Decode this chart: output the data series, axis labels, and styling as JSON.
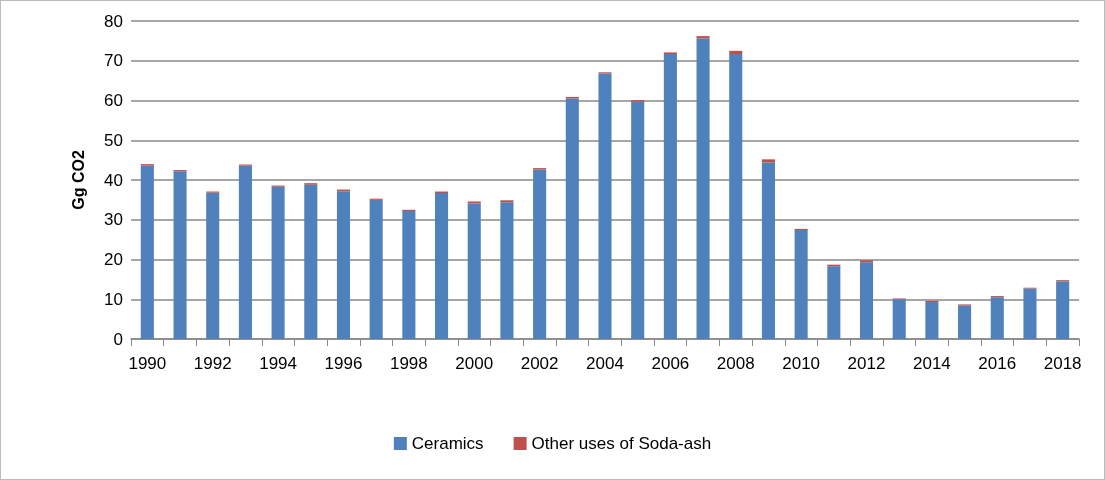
{
  "chart_data": {
    "type": "bar",
    "stacked": true,
    "ylabel": "Gg CO2",
    "categories": [
      "1990",
      null,
      "1992",
      null,
      "1994",
      null,
      "1996",
      null,
      "1998",
      null,
      "2000",
      null,
      "2002",
      null,
      "2004",
      null,
      "2006",
      null,
      "2008",
      null,
      "2010",
      null,
      "2012",
      null,
      "2014",
      null,
      "2016",
      null,
      "2018"
    ],
    "series": [
      {
        "name": "Ceramics",
        "color": "#4f81bd",
        "values": [
          43.6,
          42.2,
          36.8,
          43.6,
          38.3,
          38.8,
          37.2,
          35.0,
          32.2,
          36.7,
          34.1,
          34.4,
          42.6,
          60.5,
          66.8,
          59.7,
          71.7,
          75.6,
          71.7,
          44.4,
          27.4,
          18.3,
          19.3,
          10.0,
          9.3,
          8.4,
          10.5,
          12.7,
          14.5
        ]
      },
      {
        "name": "Other uses of Soda-ash",
        "color": "#c0504d",
        "values": [
          0.4,
          0.3,
          0.3,
          0.3,
          0.3,
          0.4,
          0.4,
          0.3,
          0.3,
          0.4,
          0.5,
          0.5,
          0.4,
          0.4,
          0.3,
          0.4,
          0.4,
          0.6,
          0.8,
          0.8,
          0.3,
          0.4,
          0.5,
          0.2,
          0.3,
          0.3,
          0.3,
          0.2,
          0.3
        ]
      }
    ],
    "ylim": [
      0,
      80
    ],
    "yticks": [
      0,
      10,
      20,
      30,
      40,
      50,
      60,
      70,
      80
    ],
    "grid": "y",
    "legend": "bottom"
  }
}
